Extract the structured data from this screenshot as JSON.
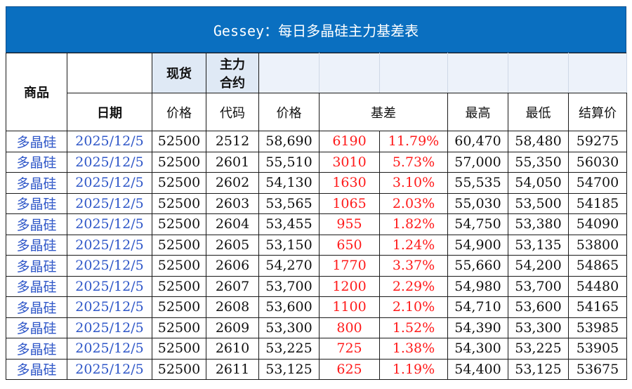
{
  "title": "Gessey：每日多晶硅主力基差表",
  "headers": {
    "product": "商品",
    "spot": "现货",
    "main_contract": [
      "主力",
      "合约"
    ],
    "date": "日期",
    "spot_price": "价格",
    "code": "代码",
    "price": "价格",
    "basis": "基差",
    "high": "最高",
    "low": "最低",
    "settle": "结算价"
  },
  "rows": [
    {
      "product": "多晶硅",
      "date": "2025/12/5",
      "spot": "52500",
      "code": "2512",
      "price": "58,690",
      "basis": "6190",
      "basis_pct": "11.79%",
      "high": "60,470",
      "low": "58,480",
      "settle": "59275"
    },
    {
      "product": "多晶硅",
      "date": "2025/12/5",
      "spot": "52500",
      "code": "2601",
      "price": "55,510",
      "basis": "3010",
      "basis_pct": "5.73%",
      "high": "57,000",
      "low": "55,350",
      "settle": "56030"
    },
    {
      "product": "多晶硅",
      "date": "2025/12/5",
      "spot": "52500",
      "code": "2602",
      "price": "54,130",
      "basis": "1630",
      "basis_pct": "3.10%",
      "high": "55,535",
      "low": "54,050",
      "settle": "54700"
    },
    {
      "product": "多晶硅",
      "date": "2025/12/5",
      "spot": "52500",
      "code": "2603",
      "price": "53,565",
      "basis": "1065",
      "basis_pct": "2.03%",
      "high": "55,030",
      "low": "53,500",
      "settle": "54185"
    },
    {
      "product": "多晶硅",
      "date": "2025/12/5",
      "spot": "52500",
      "code": "2604",
      "price": "53,455",
      "basis": "955",
      "basis_pct": "1.82%",
      "high": "54,750",
      "low": "53,380",
      "settle": "54090"
    },
    {
      "product": "多晶硅",
      "date": "2025/12/5",
      "spot": "52500",
      "code": "2605",
      "price": "53,150",
      "basis": "650",
      "basis_pct": "1.24%",
      "high": "54,900",
      "low": "53,135",
      "settle": "53800"
    },
    {
      "product": "多晶硅",
      "date": "2025/12/5",
      "spot": "52500",
      "code": "2606",
      "price": "54,270",
      "basis": "1770",
      "basis_pct": "3.37%",
      "high": "55,660",
      "low": "54,200",
      "settle": "54865"
    },
    {
      "product": "多晶硅",
      "date": "2025/12/5",
      "spot": "52500",
      "code": "2607",
      "price": "53,700",
      "basis": "1200",
      "basis_pct": "2.29%",
      "high": "54,980",
      "low": "53,700",
      "settle": "54480"
    },
    {
      "product": "多晶硅",
      "date": "2025/12/5",
      "spot": "52500",
      "code": "2608",
      "price": "53,600",
      "basis": "1100",
      "basis_pct": "2.10%",
      "high": "54,710",
      "low": "53,600",
      "settle": "54165"
    },
    {
      "product": "多晶硅",
      "date": "2025/12/5",
      "spot": "52500",
      "code": "2609",
      "price": "53,300",
      "basis": "800",
      "basis_pct": "1.52%",
      "high": "54,390",
      "low": "53,300",
      "settle": "53985"
    },
    {
      "product": "多晶硅",
      "date": "2025/12/5",
      "spot": "52500",
      "code": "2610",
      "price": "53,225",
      "basis": "725",
      "basis_pct": "1.38%",
      "high": "54,300",
      "low": "53,225",
      "settle": "53905"
    },
    {
      "product": "多晶硅",
      "date": "2025/12/5",
      "spot": "52500",
      "code": "2611",
      "price": "53,125",
      "basis": "625",
      "basis_pct": "1.19%",
      "high": "54,400",
      "low": "53,125",
      "settle": "53675"
    }
  ],
  "colors": {
    "title_bg": "#0a6fc0",
    "basis": "#ff1a1a",
    "date": "#2f57c8",
    "header_shade": "#dfe9f5"
  }
}
